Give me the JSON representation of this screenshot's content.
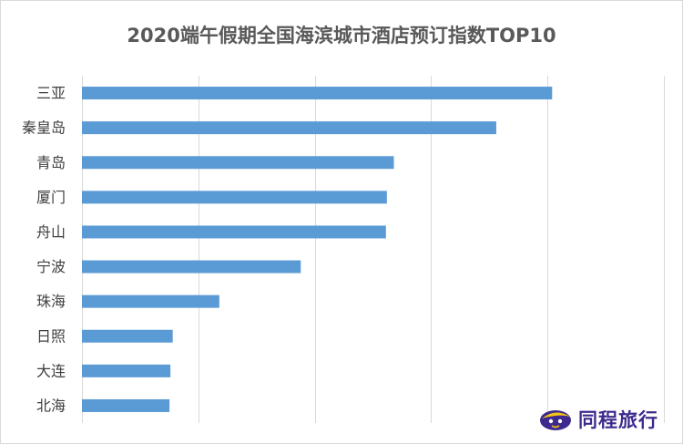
{
  "chart_data": {
    "type": "bar",
    "orientation": "horizontal",
    "title": "2020端午假期全国海滨城市酒店预订指数TOP10",
    "categories": [
      "三亚",
      "秦皇岛",
      "青岛",
      "厦门",
      "舟山",
      "宁波",
      "珠海",
      "日照",
      "大连",
      "北海"
    ],
    "values": [
      101,
      89,
      67,
      65.5,
      65.3,
      47,
      29.5,
      19.5,
      19,
      18.8
    ],
    "xlim": [
      0,
      125
    ],
    "grid": true,
    "bar_color": "#5b9bd5",
    "grid_color": "#d9d9d9"
  },
  "branding": {
    "logo_text": "同程旅行",
    "logo_icon": "tongcheng-mascot-icon",
    "logo_color": "#3d2a8c",
    "logo_accent": "#f5c518"
  }
}
